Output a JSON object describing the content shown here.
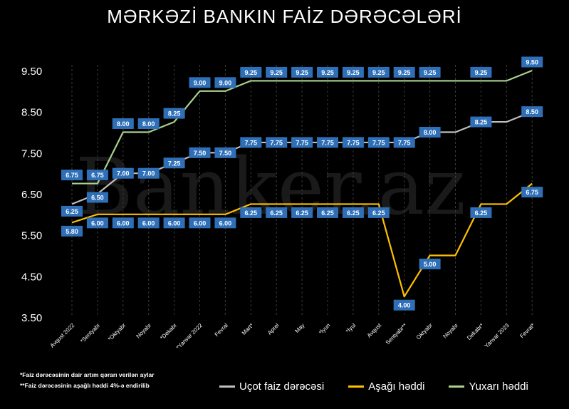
{
  "title": "MƏRKƏZİ BANKIN FAİZ DƏRƏCƏLƏRİ",
  "watermark": "Banker.az",
  "footnotes": [
    "*Faiz dərəcəsinin dair artım qərarı verilən aylar",
    "**Faiz dərəcəsinin aşağlı həddi 4%-ə endirilib"
  ],
  "colors": {
    "background": "#000000",
    "grid": "#3a3a3a",
    "label_bg": "#2f6fb8"
  },
  "chart_data": {
    "type": "line",
    "title": "MƏRKƏZİ BANKIN FAİZ DƏRƏCƏLƏRİ",
    "xlabel": "",
    "ylabel": "",
    "ylim": [
      3.5,
      9.5
    ],
    "yticks": [
      "3.50",
      "4.50",
      "5.50",
      "6.50",
      "7.50",
      "8.50",
      "9.50"
    ],
    "grid": false,
    "legend_position": "bottom-right",
    "categories": [
      "Avqust 2022",
      "*Sentyabr",
      "*Oktyabr",
      "Noyabr",
      "*Dekabr",
      "*Yanvar 2022",
      "Fevral",
      "Mart*",
      "Aprel",
      "May",
      "*İyun",
      "*İyul",
      "Avqust",
      "Sentyabr**",
      "Oktyabr",
      "Noyabr",
      "Dekabr*",
      "Yanvar 2023",
      "Fevral*"
    ],
    "series": [
      {
        "name": "Uçot faiz dərəcəsi",
        "color": "#bfbfbf",
        "values": [
          6.25,
          6.5,
          7.0,
          7.0,
          7.25,
          7.5,
          7.5,
          7.75,
          7.75,
          7.75,
          7.75,
          7.75,
          7.75,
          7.75,
          8.0,
          8.0,
          8.25,
          8.25,
          8.5
        ],
        "labels": [
          "6.25",
          "6.50",
          "7.00",
          "7.00",
          "7.25",
          "7.50",
          "7.50",
          "7.75",
          "7.75",
          "7.75",
          "7.75",
          "7.75",
          "7.75",
          "7.75",
          "8.00",
          "",
          "8.25",
          "",
          "8.50"
        ]
      },
      {
        "name": "Aşağı həddi",
        "color": "#ffc000",
        "values": [
          5.8,
          6.0,
          6.0,
          6.0,
          6.0,
          6.0,
          6.0,
          6.25,
          6.25,
          6.25,
          6.25,
          6.25,
          6.25,
          4.0,
          5.0,
          5.0,
          6.25,
          6.25,
          6.75
        ],
        "labels": [
          "5.80",
          "6.00",
          "6.00",
          "6.00",
          "6.00",
          "6.00",
          "6.00",
          "6.25",
          "6.25",
          "6.25",
          "6.25",
          "6.25",
          "6.25",
          "4.00",
          "5.00",
          "",
          "6.25",
          "",
          "6.75"
        ]
      },
      {
        "name": "Yuxarı həddi",
        "color": "#a9d18e",
        "values": [
          6.75,
          6.75,
          8.0,
          8.0,
          8.25,
          9.0,
          9.0,
          9.25,
          9.25,
          9.25,
          9.25,
          9.25,
          9.25,
          9.25,
          9.25,
          9.25,
          9.25,
          9.25,
          9.5
        ],
        "labels": [
          "6.75",
          "6.75",
          "8.00",
          "8.00",
          "8.25",
          "9.00",
          "9.00",
          "9.25",
          "9.25",
          "9.25",
          "9.25",
          "9.25",
          "9.25",
          "9.25",
          "9.25",
          "",
          "9.25",
          "",
          "9.50"
        ]
      }
    ]
  }
}
